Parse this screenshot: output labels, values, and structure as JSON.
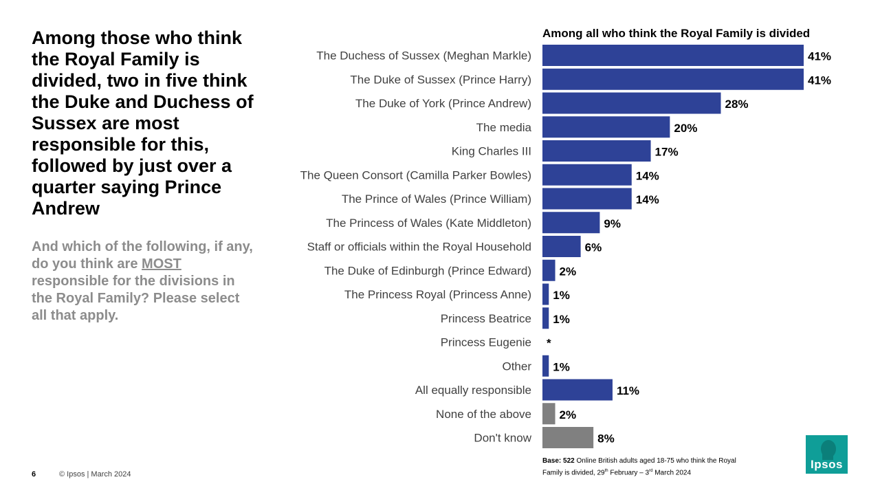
{
  "headline": "Among those who think the Royal Family is divided, two in five think the Duke and Duchess of Sussex are most responsible for this, followed by just over a quarter saying Prince Andrew",
  "question": {
    "pre": "And which of the following, if any, do you think are ",
    "emphasis": "MOST",
    "post": " responsible for the divisions in the Royal Family? Please select all that apply."
  },
  "footer": {
    "page_number": "6",
    "copyright": "© Ipsos | March 2024",
    "base_bold": "Base: 522",
    "base_text": " Online British adults aged 18-75 who think the Royal Family  is divided, 29",
    "base_sup1": "th",
    "base_mid": " February – 3",
    "base_sup2": "rd",
    "base_end": " March 2024"
  },
  "logo": {
    "text": "Ipsos",
    "color": "#0f9e98"
  },
  "chart_data": {
    "type": "bar",
    "orientation": "horizontal",
    "title": "Among all who think the Royal Family is divided",
    "xlabel": "",
    "ylabel": "",
    "xlim": [
      0,
      41
    ],
    "grid": false,
    "colors": {
      "primary": "#2e4297",
      "secondary": "#808080"
    },
    "categories": [
      "The Duchess of Sussex (Meghan Markle)",
      "The Duke of Sussex (Prince Harry)",
      "The Duke of York (Prince Andrew)",
      "The media ",
      "King Charles III",
      "The Queen Consort (Camilla Parker Bowles)",
      "The Prince of Wales (Prince William)",
      "The Princess of Wales (Kate Middleton)",
      "Staff or officials within the Royal Household",
      "The Duke of Edinburgh (Prince Edward)",
      "The Princess Royal (Princess Anne)",
      "Princess Beatrice",
      "Princess Eugenie",
      "Other",
      "All equally responsible",
      "None of the above",
      "Don't know"
    ],
    "values": [
      41,
      41,
      28,
      20,
      17,
      14,
      14,
      9,
      6,
      2,
      1,
      1,
      0,
      1,
      11,
      2,
      8
    ],
    "value_labels": [
      "41%",
      "41%",
      "28%",
      "20%",
      "17%",
      "14%",
      "14%",
      "9%",
      "6%",
      "2%",
      "1%",
      "1%",
      "*",
      "1%",
      "11%",
      "2%",
      "8%"
    ],
    "bar_colors": [
      "primary",
      "primary",
      "primary",
      "primary",
      "primary",
      "primary",
      "primary",
      "primary",
      "primary",
      "primary",
      "primary",
      "primary",
      "primary",
      "primary",
      "primary",
      "secondary",
      "secondary"
    ]
  }
}
